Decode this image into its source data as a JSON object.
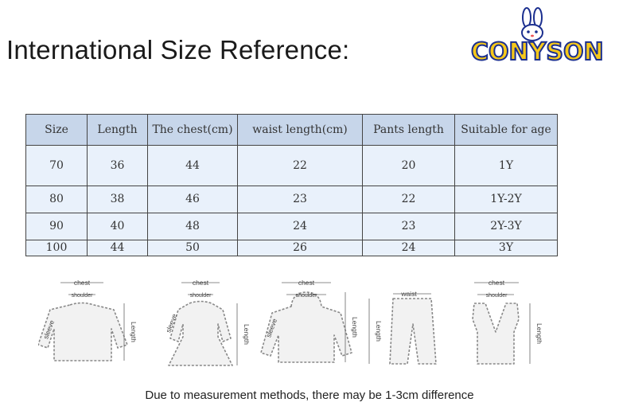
{
  "title": "International Size Reference:",
  "brand": {
    "name": "CONYSON",
    "colors": {
      "fill": "#f5c81a",
      "outline": "#1b2f8f"
    }
  },
  "table": {
    "headers": [
      "Size",
      "Length",
      "The chest(cm)",
      "waist length(cm)",
      "Pants length",
      "Suitable for age"
    ],
    "rows": [
      [
        "70",
        "36",
        "44",
        "22",
        "20",
        "1Y"
      ],
      [
        "80",
        "38",
        "46",
        "23",
        "22",
        "1Y-2Y"
      ],
      [
        "90",
        "40",
        "48",
        "24",
        "23",
        "2Y-3Y"
      ],
      [
        "100",
        "44",
        "50",
        "26",
        "24",
        "3Y"
      ]
    ]
  },
  "diagrams": {
    "labels": {
      "chest": "chest",
      "shoulder": "shoulder",
      "sleeve": "sleeve",
      "length": "Length",
      "waist": "waist"
    },
    "items": [
      "sweatshirt",
      "dress",
      "hooded-jacket",
      "pants",
      "vest"
    ]
  },
  "footnote": "Due to measurement methods, there may be 1-3cm difference"
}
